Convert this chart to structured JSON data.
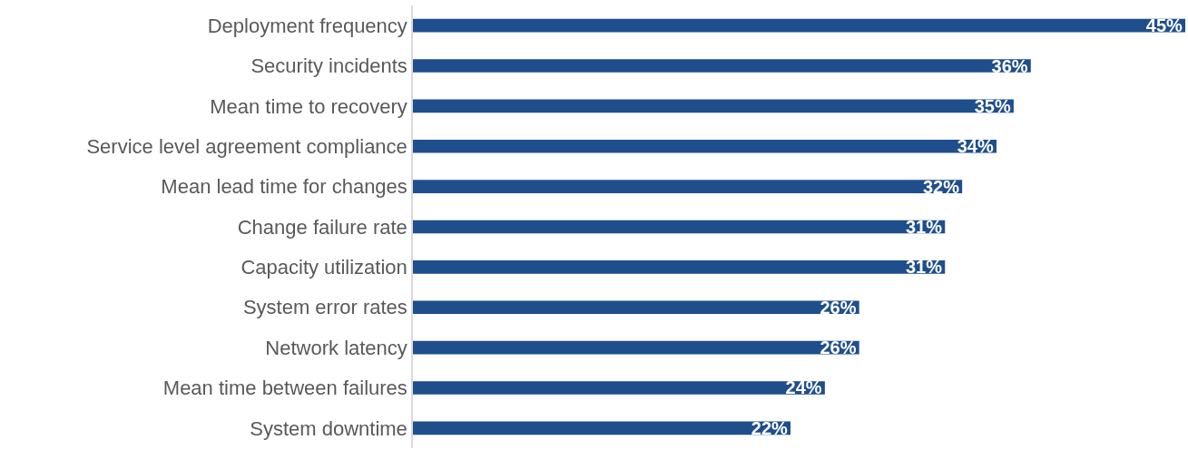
{
  "chart_data": {
    "type": "bar",
    "orientation": "horizontal",
    "legend": false,
    "categories": [
      "Deployment frequency",
      "Security incidents",
      "Mean time to recovery",
      "Service level agreement compliance",
      "Mean lead time for changes",
      "Change failure rate",
      "Capacity utilization",
      "System error rates",
      "Network latency",
      "Mean time between failures",
      "System downtime"
    ],
    "values": [
      45,
      36,
      35,
      34,
      32,
      31,
      31,
      26,
      26,
      24,
      22
    ],
    "value_labels": [
      "45%",
      "36%",
      "35%",
      "34%",
      "32%",
      "31%",
      "31%",
      "26%",
      "26%",
      "24%",
      "22%"
    ],
    "color": "#1f4e8c",
    "tick_labels": "y"
  }
}
